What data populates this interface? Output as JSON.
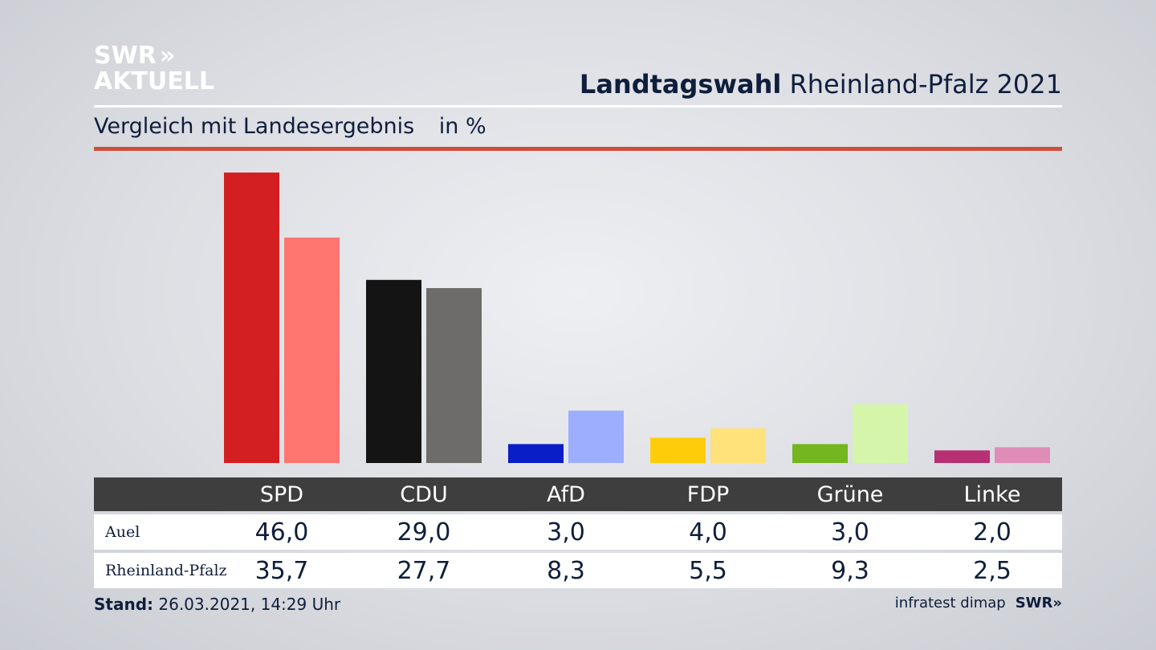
{
  "brand": {
    "logo_line1": "SWR",
    "logo_line2": "AKTUELL",
    "chevrons": "»"
  },
  "header": {
    "title_bold": "Landtagswahl",
    "title_rest": "Rheinland-Pfalz 2021",
    "subtitle": "Vergleich mit Landesergebnis",
    "unit": "in %"
  },
  "colors": {
    "accent_rule": "#cd4f3a",
    "table_header": "#3e3e3e"
  },
  "chart_data": {
    "type": "bar",
    "categories": [
      "SPD",
      "CDU",
      "AfD",
      "FDP",
      "Grüne",
      "Linke"
    ],
    "series": [
      {
        "name": "Auel",
        "values": [
          46.0,
          29.0,
          3.0,
          4.0,
          3.0,
          2.0
        ],
        "colors": [
          "#d41f22",
          "#141414",
          "#0a1ec8",
          "#ffcc0a",
          "#74b61f",
          "#b63073"
        ]
      },
      {
        "name": "Rheinland-Pfalz",
        "values": [
          35.7,
          27.7,
          8.3,
          5.5,
          9.3,
          2.5
        ],
        "colors": [
          "#ff756f",
          "#6e6c6a",
          "#9daeff",
          "#ffe27a",
          "#d5f5aa",
          "#e08cb8"
        ]
      }
    ],
    "ylim": [
      0,
      46
    ],
    "grid": false,
    "legend": "none"
  },
  "table": {
    "headers": [
      "SPD",
      "CDU",
      "AfD",
      "FDP",
      "Grüne",
      "Linke"
    ],
    "rows": [
      {
        "label": "Auel",
        "values": [
          "46,0",
          "29,0",
          "3,0",
          "4,0",
          "3,0",
          "2,0"
        ]
      },
      {
        "label": "Rheinland-Pfalz",
        "values": [
          "35,7",
          "27,7",
          "8,3",
          "5,5",
          "9,3",
          "2,5"
        ]
      }
    ]
  },
  "footer": {
    "stand_label": "Stand:",
    "stand_value": "26.03.2021, 14:29 Uhr",
    "source": "infratest dimap",
    "swr": "SWR»"
  }
}
